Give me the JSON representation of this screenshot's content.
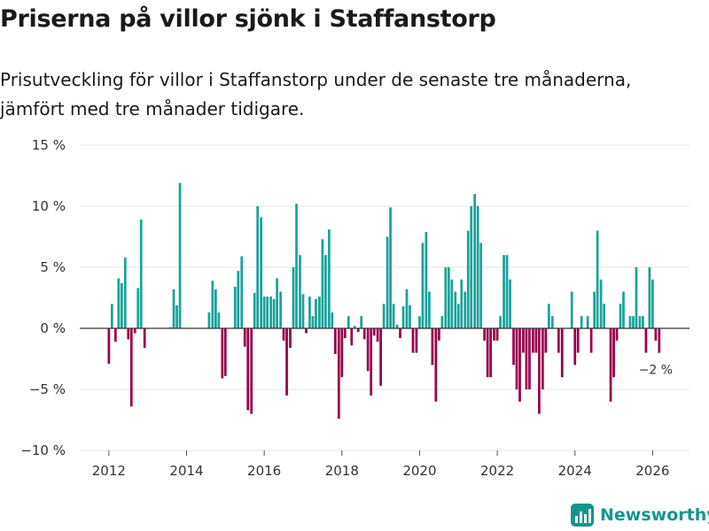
{
  "header": {
    "title": "Priserna på villor sjönk i Staffanstorp",
    "subtitle": "Prisutveckling för villor i Staffanstorp under de senaste tre månaderna, jämfört med tre månader tidigare."
  },
  "brand": {
    "name": "Newsworthy"
  },
  "colors": {
    "positive": "#1aa39a",
    "negative": "#99004d",
    "grid": "#e5e5e5",
    "zero": "#333333",
    "text": "#333333",
    "brand": "#14958c"
  },
  "chart_data": {
    "type": "bar",
    "title": "Priserna på villor sjönk i Staffanstorp",
    "xlabel": "",
    "ylabel": "",
    "ylim": [
      -10,
      15
    ],
    "xlim": [
      2011.25,
      2026.95
    ],
    "grid": true,
    "y_ticks": [
      {
        "value": -10,
        "label": "−10 %"
      },
      {
        "value": -5,
        "label": "−5 %"
      },
      {
        "value": 0,
        "label": "0 %"
      },
      {
        "value": 5,
        "label": "5 %"
      },
      {
        "value": 10,
        "label": "10 %"
      },
      {
        "value": 15,
        "label": "15 %"
      }
    ],
    "x_ticks": [
      {
        "value": 2012,
        "label": "2012"
      },
      {
        "value": 2014,
        "label": "2014"
      },
      {
        "value": 2016,
        "label": "2016"
      },
      {
        "value": 2018,
        "label": "2018"
      },
      {
        "value": 2020,
        "label": "2020"
      },
      {
        "value": 2022,
        "label": "2022"
      },
      {
        "value": 2024,
        "label": "2024"
      },
      {
        "value": 2026,
        "label": "2026"
      }
    ],
    "annotation": {
      "label": "−2 %",
      "x": 2026.08,
      "y": -2
    },
    "series": [
      {
        "name": "Prisutveckling",
        "points": [
          {
            "x": 2012.0,
            "y": -2.9
          },
          {
            "x": 2012.08,
            "y": 2.0
          },
          {
            "x": 2012.17,
            "y": -1.1
          },
          {
            "x": 2012.25,
            "y": 4.1
          },
          {
            "x": 2012.33,
            "y": 3.7
          },
          {
            "x": 2012.42,
            "y": 5.8
          },
          {
            "x": 2012.5,
            "y": -0.9
          },
          {
            "x": 2012.58,
            "y": -6.4
          },
          {
            "x": 2012.67,
            "y": -0.4
          },
          {
            "x": 2012.75,
            "y": 3.3
          },
          {
            "x": 2012.83,
            "y": 8.9
          },
          {
            "x": 2012.92,
            "y": -1.6
          },
          {
            "x": 2013.58,
            "y": 0.1
          },
          {
            "x": 2013.67,
            "y": 3.2
          },
          {
            "x": 2013.75,
            "y": 1.9
          },
          {
            "x": 2013.83,
            "y": 11.9
          },
          {
            "x": 2014.58,
            "y": 1.3
          },
          {
            "x": 2014.67,
            "y": 3.9
          },
          {
            "x": 2014.75,
            "y": 3.2
          },
          {
            "x": 2014.83,
            "y": 1.3
          },
          {
            "x": 2014.92,
            "y": -4.1
          },
          {
            "x": 2015.0,
            "y": -3.9
          },
          {
            "x": 2015.25,
            "y": 3.4
          },
          {
            "x": 2015.33,
            "y": 4.7
          },
          {
            "x": 2015.42,
            "y": 5.9
          },
          {
            "x": 2015.5,
            "y": -1.5
          },
          {
            "x": 2015.58,
            "y": -6.7
          },
          {
            "x": 2015.67,
            "y": -7.0
          },
          {
            "x": 2015.75,
            "y": 2.9
          },
          {
            "x": 2015.83,
            "y": 10.0
          },
          {
            "x": 2015.92,
            "y": 9.1
          },
          {
            "x": 2016.0,
            "y": 2.6
          },
          {
            "x": 2016.08,
            "y": 2.6
          },
          {
            "x": 2016.17,
            "y": 2.6
          },
          {
            "x": 2016.25,
            "y": 2.4
          },
          {
            "x": 2016.33,
            "y": 4.1
          },
          {
            "x": 2016.42,
            "y": 3.0
          },
          {
            "x": 2016.5,
            "y": -1.0
          },
          {
            "x": 2016.58,
            "y": -5.5
          },
          {
            "x": 2016.67,
            "y": -1.6
          },
          {
            "x": 2016.75,
            "y": 5.0
          },
          {
            "x": 2016.83,
            "y": 10.2
          },
          {
            "x": 2016.92,
            "y": 6.0
          },
          {
            "x": 2017.0,
            "y": 2.8
          },
          {
            "x": 2017.08,
            "y": -0.4
          },
          {
            "x": 2017.17,
            "y": 2.6
          },
          {
            "x": 2017.25,
            "y": 1.0
          },
          {
            "x": 2017.33,
            "y": 2.4
          },
          {
            "x": 2017.42,
            "y": 2.6
          },
          {
            "x": 2017.5,
            "y": 7.3
          },
          {
            "x": 2017.58,
            "y": 6.0
          },
          {
            "x": 2017.67,
            "y": 8.1
          },
          {
            "x": 2017.75,
            "y": 1.3
          },
          {
            "x": 2017.83,
            "y": -2.1
          },
          {
            "x": 2017.92,
            "y": -7.4
          },
          {
            "x": 2018.0,
            "y": -4.0
          },
          {
            "x": 2018.08,
            "y": -0.8
          },
          {
            "x": 2018.17,
            "y": 1.0
          },
          {
            "x": 2018.25,
            "y": -1.4
          },
          {
            "x": 2018.33,
            "y": 0.2
          },
          {
            "x": 2018.42,
            "y": -0.3
          },
          {
            "x": 2018.5,
            "y": 1.0
          },
          {
            "x": 2018.58,
            "y": -0.9
          },
          {
            "x": 2018.67,
            "y": -3.5
          },
          {
            "x": 2018.75,
            "y": -5.5
          },
          {
            "x": 2018.83,
            "y": -0.6
          },
          {
            "x": 2018.92,
            "y": -1.1
          },
          {
            "x": 2019.0,
            "y": -4.7
          },
          {
            "x": 2019.08,
            "y": 2.0
          },
          {
            "x": 2019.17,
            "y": 7.5
          },
          {
            "x": 2019.25,
            "y": 9.9
          },
          {
            "x": 2019.33,
            "y": 2.0
          },
          {
            "x": 2019.42,
            "y": 0.3
          },
          {
            "x": 2019.5,
            "y": -0.8
          },
          {
            "x": 2019.58,
            "y": 1.8
          },
          {
            "x": 2019.67,
            "y": 3.2
          },
          {
            "x": 2019.75,
            "y": 1.9
          },
          {
            "x": 2019.83,
            "y": -2.0
          },
          {
            "x": 2019.92,
            "y": -2.0
          },
          {
            "x": 2020.0,
            "y": 1.0
          },
          {
            "x": 2020.08,
            "y": 7.0
          },
          {
            "x": 2020.17,
            "y": 7.9
          },
          {
            "x": 2020.25,
            "y": 3.0
          },
          {
            "x": 2020.33,
            "y": -3.0
          },
          {
            "x": 2020.42,
            "y": -6.0
          },
          {
            "x": 2020.5,
            "y": -1.0
          },
          {
            "x": 2020.58,
            "y": 1.0
          },
          {
            "x": 2020.67,
            "y": 5.0
          },
          {
            "x": 2020.75,
            "y": 5.0
          },
          {
            "x": 2020.83,
            "y": 4.0
          },
          {
            "x": 2020.92,
            "y": 3.0
          },
          {
            "x": 2021.0,
            "y": 2.0
          },
          {
            "x": 2021.08,
            "y": 4.0
          },
          {
            "x": 2021.17,
            "y": 3.0
          },
          {
            "x": 2021.25,
            "y": 8.0
          },
          {
            "x": 2021.33,
            "y": 10.0
          },
          {
            "x": 2021.42,
            "y": 11.0
          },
          {
            "x": 2021.5,
            "y": 10.0
          },
          {
            "x": 2021.58,
            "y": 7.0
          },
          {
            "x": 2021.67,
            "y": -1.0
          },
          {
            "x": 2021.75,
            "y": -4.0
          },
          {
            "x": 2021.83,
            "y": -4.0
          },
          {
            "x": 2021.92,
            "y": -1.0
          },
          {
            "x": 2022.0,
            "y": -1.0
          },
          {
            "x": 2022.08,
            "y": 1.0
          },
          {
            "x": 2022.17,
            "y": 6.0
          },
          {
            "x": 2022.25,
            "y": 6.0
          },
          {
            "x": 2022.33,
            "y": 4.0
          },
          {
            "x": 2022.42,
            "y": -3.0
          },
          {
            "x": 2022.5,
            "y": -5.0
          },
          {
            "x": 2022.58,
            "y": -6.0
          },
          {
            "x": 2022.67,
            "y": -2.0
          },
          {
            "x": 2022.75,
            "y": -5.0
          },
          {
            "x": 2022.83,
            "y": -5.0
          },
          {
            "x": 2022.92,
            "y": -2.0
          },
          {
            "x": 2023.0,
            "y": -2.0
          },
          {
            "x": 2023.08,
            "y": -7.0
          },
          {
            "x": 2023.17,
            "y": -5.0
          },
          {
            "x": 2023.25,
            "y": -2.0
          },
          {
            "x": 2023.33,
            "y": 2.0
          },
          {
            "x": 2023.42,
            "y": 1.0
          },
          {
            "x": 2023.58,
            "y": -2.0
          },
          {
            "x": 2023.67,
            "y": -4.0
          },
          {
            "x": 2023.92,
            "y": 3.0
          },
          {
            "x": 2024.0,
            "y": -3.0
          },
          {
            "x": 2024.08,
            "y": -2.0
          },
          {
            "x": 2024.17,
            "y": 1.0
          },
          {
            "x": 2024.33,
            "y": 1.0
          },
          {
            "x": 2024.42,
            "y": -2.0
          },
          {
            "x": 2024.5,
            "y": 3.0
          },
          {
            "x": 2024.58,
            "y": 8.0
          },
          {
            "x": 2024.67,
            "y": 4.0
          },
          {
            "x": 2024.75,
            "y": 2.0
          },
          {
            "x": 2024.92,
            "y": -6.0
          },
          {
            "x": 2025.0,
            "y": -4.0
          },
          {
            "x": 2025.08,
            "y": -1.0
          },
          {
            "x": 2025.17,
            "y": 2.0
          },
          {
            "x": 2025.25,
            "y": 3.0
          },
          {
            "x": 2025.42,
            "y": 1.0
          },
          {
            "x": 2025.5,
            "y": 1.0
          },
          {
            "x": 2025.58,
            "y": 5.0
          },
          {
            "x": 2025.67,
            "y": 1.0
          },
          {
            "x": 2025.75,
            "y": 1.0
          },
          {
            "x": 2025.83,
            "y": -2.0
          },
          {
            "x": 2025.92,
            "y": 5.0
          },
          {
            "x": 2026.0,
            "y": 4.0
          },
          {
            "x": 2026.08,
            "y": -1.0
          },
          {
            "x": 2026.17,
            "y": -2.0
          }
        ]
      }
    ]
  }
}
